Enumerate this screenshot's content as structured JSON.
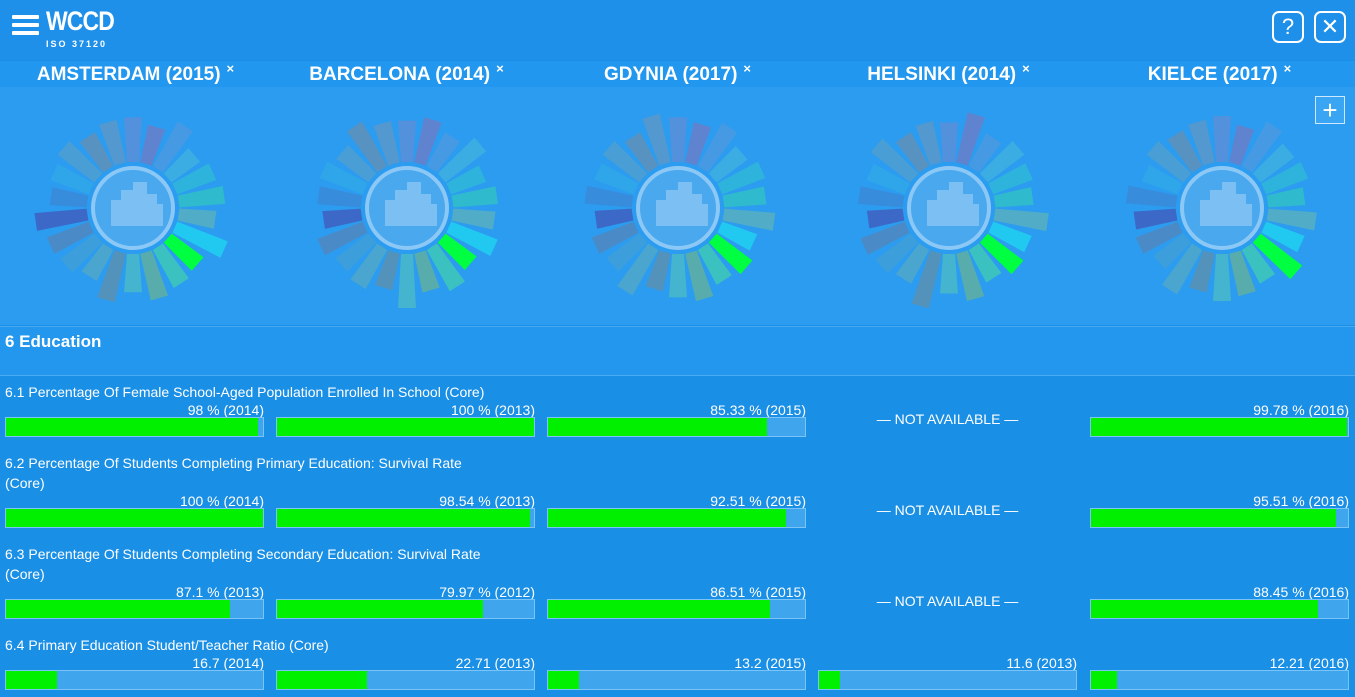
{
  "app": {
    "logo_title": "WCCD",
    "logo_subtitle": "ISO 37120",
    "help_label": "?",
    "close_label": "✕",
    "add_label": "+"
  },
  "cities": [
    {
      "name": "AMSTERDAM (2015)",
      "remove": "×"
    },
    {
      "name": "BARCELONA (2014)",
      "remove": "×"
    },
    {
      "name": "GDYNIA (2017)",
      "remove": "×"
    },
    {
      "name": "HELSINKI (2014)",
      "remove": "×"
    },
    {
      "name": "KIELCE (2017)",
      "remove": "×"
    }
  ],
  "section": {
    "title": "6 Education"
  },
  "indicators": [
    {
      "title": "6.1 Percentage Of Female School-Aged Population Enrolled In School (Core)",
      "values": [
        {
          "label": "98 % (2014)",
          "fill": 0.98
        },
        {
          "label": "100 % (2013)",
          "fill": 1.0
        },
        {
          "label": "85.33 % (2015)",
          "fill": 0.8533
        },
        {
          "label": "— NOT AVAILABLE —",
          "na": true
        },
        {
          "label": "99.78 % (2016)",
          "fill": 0.9978
        }
      ]
    },
    {
      "title": "6.2 Percentage Of Students Completing Primary Education: Survival Rate (Core)",
      "values": [
        {
          "label": "100 % (2014)",
          "fill": 1.0
        },
        {
          "label": "98.54 % (2013)",
          "fill": 0.9854
        },
        {
          "label": "92.51 % (2015)",
          "fill": 0.9251
        },
        {
          "label": "— NOT AVAILABLE —",
          "na": true
        },
        {
          "label": "95.51 % (2016)",
          "fill": 0.9551
        }
      ]
    },
    {
      "title": "6.3 Percentage Of Students Completing Secondary Education: Survival Rate (Core)",
      "values": [
        {
          "label": "87.1 % (2013)",
          "fill": 0.871
        },
        {
          "label": "79.97 % (2012)",
          "fill": 0.7997
        },
        {
          "label": "86.51 % (2015)",
          "fill": 0.8651
        },
        {
          "label": "— NOT AVAILABLE —",
          "na": true
        },
        {
          "label": "88.45 % (2016)",
          "fill": 0.8845
        }
      ]
    },
    {
      "title": "6.4 Primary Education Student/Teacher Ratio (Core)",
      "values": [
        {
          "label": "16.7 (2014)",
          "fill": 0.2
        },
        {
          "label": "22.71 (2013)",
          "fill": 0.35
        },
        {
          "label": "13.2 (2015)",
          "fill": 0.12
        },
        {
          "label": "11.6 (2013)",
          "fill": 0.08
        },
        {
          "label": "12.21 (2016)",
          "fill": 0.1
        }
      ]
    }
  ],
  "wheel_colors": [
    "#5a8fd9",
    "#6a7fc9",
    "#4a9ae0",
    "#3fb0e0",
    "#2fb8d8",
    "#30c0c8",
    "#58b0c0",
    "#20d0f0",
    "#00ff40",
    "#3fc8b8",
    "#60b0a0",
    "#4ab8c8",
    "#5a90b0",
    "#50a8c8",
    "#3fa0d8",
    "#5088c0",
    "#4060c0",
    "#3a8ad8",
    "#2fa8e8",
    "#4fa0d0",
    "#6090b8",
    "#5a98c8"
  ]
}
